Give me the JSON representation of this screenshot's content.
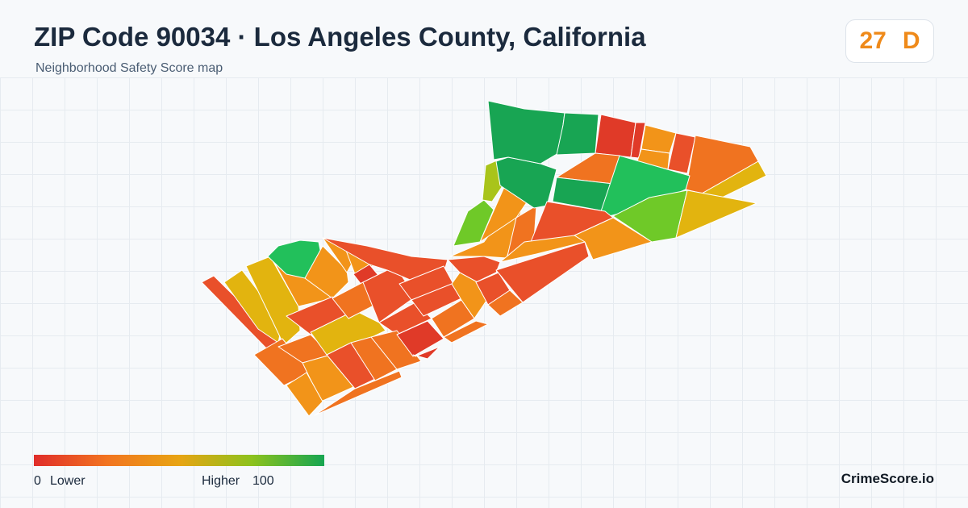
{
  "header": {
    "title": "ZIP Code 90034 · Los Angeles County, California",
    "subtitle": "Neighborhood Safety Score map"
  },
  "score": {
    "value": "27",
    "grade": "D",
    "color": "#ef8a1a"
  },
  "legend": {
    "min": "0",
    "low_label": "Lower",
    "high_label": "Higher",
    "max": "100",
    "colors": [
      "#e02d2a",
      "#f27420",
      "#e8a413",
      "#8dc21d",
      "#16a551"
    ]
  },
  "map": {
    "region": "90034",
    "palette": {
      "red": "#e03a28",
      "red_orange": "#e9502a",
      "orange": "#f07320",
      "amber": "#f29419",
      "yellow": "#e2b40f",
      "yellow_green": "#a9c41a",
      "light_green": "#6fc928",
      "green": "#22c05b",
      "dark_green": "#18a553"
    }
  },
  "brand": "CrimeScore.io"
}
